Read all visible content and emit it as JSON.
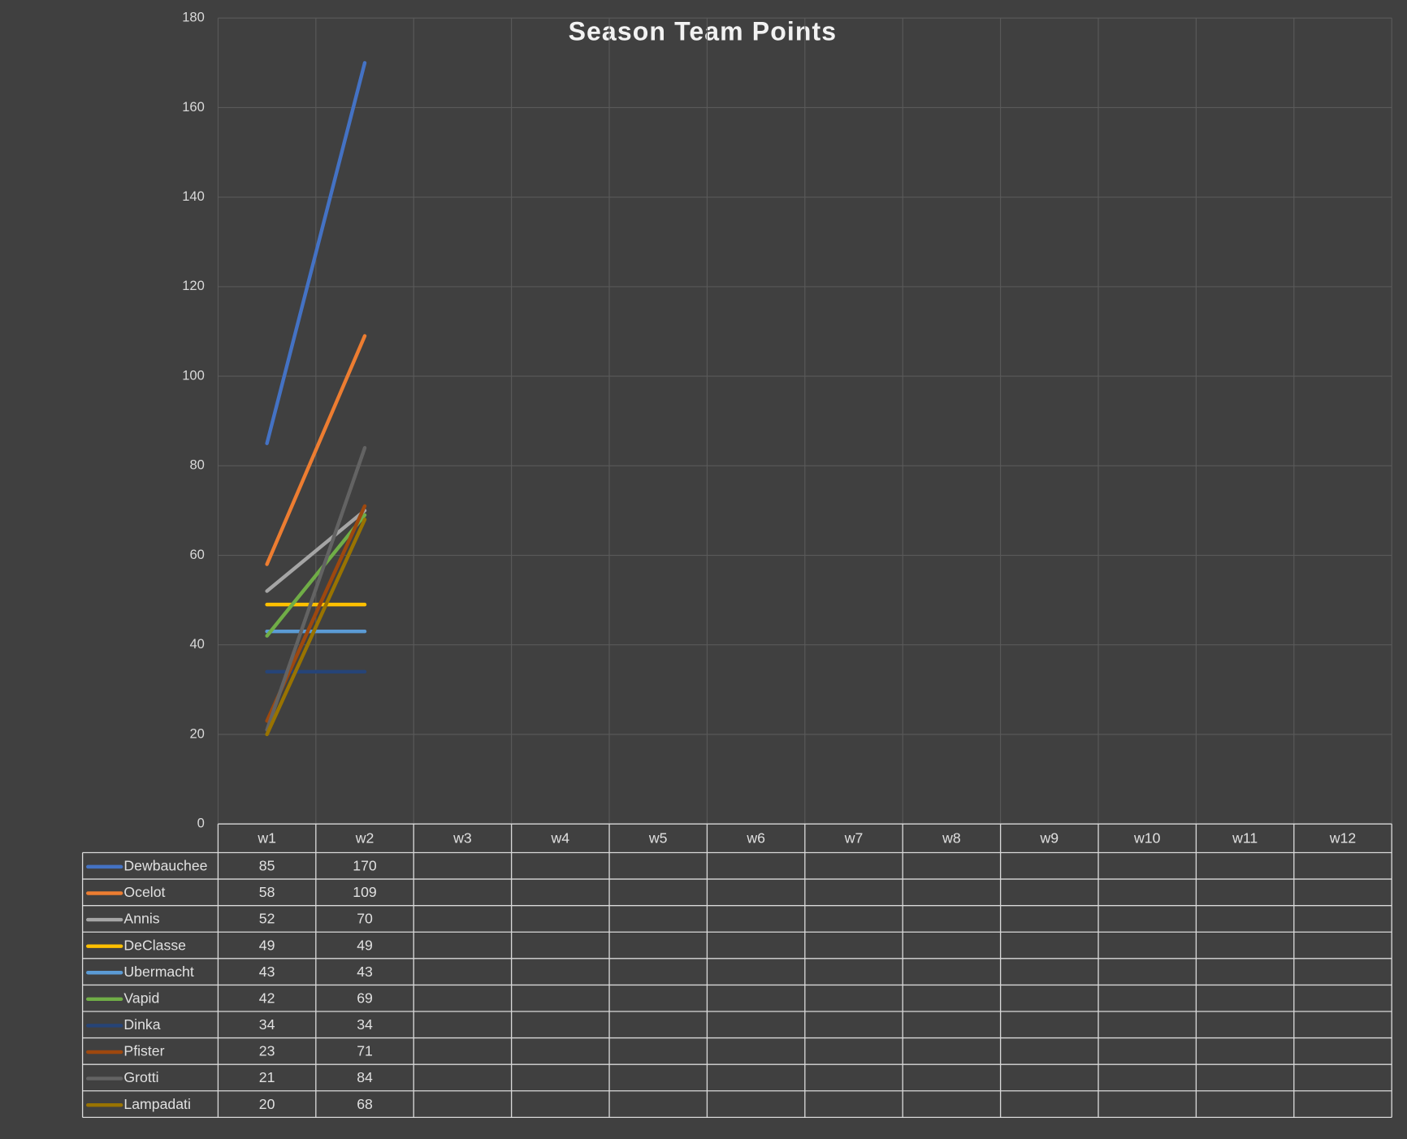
{
  "chart_data": {
    "type": "line",
    "title": "Season Team Points",
    "categories": [
      "w1",
      "w2",
      "w3",
      "w4",
      "w5",
      "w6",
      "w7",
      "w8",
      "w9",
      "w10",
      "w11",
      "w12"
    ],
    "series": [
      {
        "name": "Dewbauchee",
        "color": "#4472c4",
        "values": [
          85,
          170,
          null,
          null,
          null,
          null,
          null,
          null,
          null,
          null,
          null,
          null
        ]
      },
      {
        "name": "Ocelot",
        "color": "#ed7d31",
        "values": [
          58,
          109,
          null,
          null,
          null,
          null,
          null,
          null,
          null,
          null,
          null,
          null
        ]
      },
      {
        "name": "Annis",
        "color": "#a5a5a5",
        "values": [
          52,
          70,
          null,
          null,
          null,
          null,
          null,
          null,
          null,
          null,
          null,
          null
        ]
      },
      {
        "name": "DeClasse",
        "color": "#ffc000",
        "values": [
          49,
          49,
          null,
          null,
          null,
          null,
          null,
          null,
          null,
          null,
          null,
          null
        ]
      },
      {
        "name": "Ubermacht",
        "color": "#5b9bd5",
        "values": [
          43,
          43,
          null,
          null,
          null,
          null,
          null,
          null,
          null,
          null,
          null,
          null
        ]
      },
      {
        "name": "Vapid",
        "color": "#70ad47",
        "values": [
          42,
          69,
          null,
          null,
          null,
          null,
          null,
          null,
          null,
          null,
          null,
          null
        ]
      },
      {
        "name": "Dinka",
        "color": "#264478",
        "values": [
          34,
          34,
          null,
          null,
          null,
          null,
          null,
          null,
          null,
          null,
          null,
          null
        ]
      },
      {
        "name": "Pfister",
        "color": "#9e480e",
        "values": [
          23,
          71,
          null,
          null,
          null,
          null,
          null,
          null,
          null,
          null,
          null,
          null
        ]
      },
      {
        "name": "Grotti",
        "color": "#636363",
        "values": [
          21,
          84,
          null,
          null,
          null,
          null,
          null,
          null,
          null,
          null,
          null,
          null
        ]
      },
      {
        "name": "Lampadati",
        "color": "#997300",
        "values": [
          20,
          68,
          null,
          null,
          null,
          null,
          null,
          null,
          null,
          null,
          null,
          null
        ]
      }
    ],
    "ylim": [
      0,
      180
    ],
    "yticks": [
      0,
      20,
      40,
      60,
      80,
      100,
      120,
      140,
      160,
      180
    ],
    "grid": true,
    "data_table": true
  }
}
